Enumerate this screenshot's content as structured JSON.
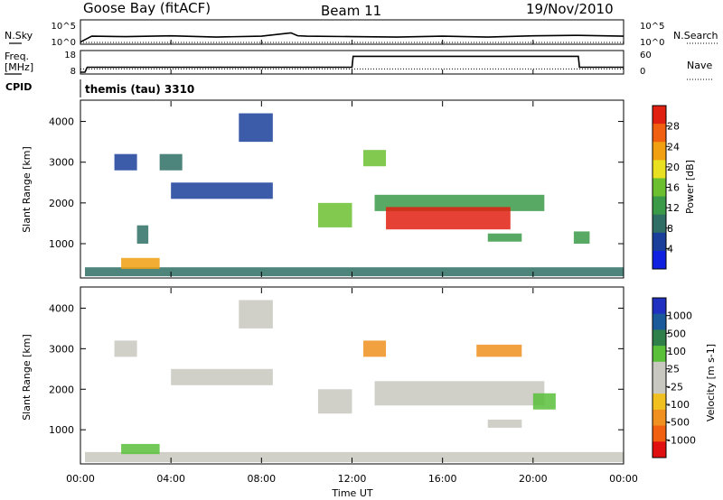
{
  "header": {
    "station": "Goose Bay (fitACF)",
    "beam": "Beam 11",
    "date": "19/Nov/2010"
  },
  "noise_panel": {
    "left_label": "N.Sky",
    "right_label": "N.Search",
    "ticks_left": [
      "10^5",
      "10^0"
    ],
    "ticks_right": [
      "10^5",
      "10^0"
    ]
  },
  "freq_panel": {
    "left_label_1": "Freq.",
    "left_label_2": "[MHz]",
    "right_label": "Nave",
    "ticks_left": [
      "18",
      "8"
    ],
    "ticks_right": [
      "60",
      "0"
    ]
  },
  "cpid": {
    "label": "CPID",
    "program": "themis (tau) 3310"
  },
  "colors": {
    "power_scale": [
      "#1020e0",
      "#1a3f9a",
      "#2e6e64",
      "#3b9a48",
      "#6cc030",
      "#e8e020",
      "#f0a010",
      "#f06010",
      "#e02010"
    ],
    "velocity_scale": [
      "#2030c0",
      "#1a5a9a",
      "#2f7f4a",
      "#5ac03a",
      "#c8c8c0",
      "#c8c8c0",
      "#f0c020",
      "#f09020",
      "#f06010",
      "#e01010"
    ]
  },
  "chart_data": [
    {
      "type": "line",
      "panel": "noise",
      "series": [
        {
          "name": "N.Sky",
          "style": "solid",
          "x": [
            0,
            0.5,
            2,
            4,
            6,
            8,
            9.3,
            9.6,
            10,
            12,
            14,
            16,
            18,
            20,
            22,
            24
          ],
          "y": [
            0.1,
            1.5,
            1.4,
            1.6,
            1.3,
            1.5,
            2.3,
            1.6,
            1.5,
            1.4,
            1.3,
            1.5,
            1.3,
            1.6,
            1.7,
            1.5
          ]
        },
        {
          "name": "N.Search",
          "style": "dotted",
          "x": [
            0,
            24
          ],
          "y": [
            0,
            0
          ]
        }
      ],
      "ylim": [
        0,
        5
      ],
      "xlim": [
        0,
        24
      ]
    },
    {
      "type": "line",
      "panel": "frequency",
      "series": [
        {
          "name": "Freq.",
          "style": "solid",
          "x": [
            0,
            0.2,
            0.3,
            12,
            12.05,
            22,
            22.05,
            24
          ],
          "y": [
            8,
            8,
            10.5,
            10.5,
            16,
            16,
            10.5,
            10.5
          ]
        },
        {
          "name": "Nave",
          "style": "dotted",
          "x": [
            0,
            24
          ],
          "y": [
            10,
            10
          ]
        }
      ],
      "ylim_left": [
        8,
        18
      ],
      "ylim_right": [
        0,
        60
      ],
      "xlim": [
        0,
        24
      ]
    },
    {
      "type": "heatmap",
      "panel": "power",
      "ylabel": "Slant Range [km]",
      "colorbar_label": "Power [dB]",
      "colorbar_ticks": [
        "28",
        "24",
        "20",
        "16",
        "12",
        "8",
        "4"
      ],
      "xlim": [
        0,
        24
      ],
      "ylim": [
        180,
        4500
      ],
      "yticks": [
        "4000",
        "3000",
        "2000",
        "1000"
      ],
      "regions": [
        {
          "x0": 0.2,
          "x1": 24,
          "y0": 200,
          "y1": 420,
          "level": 2
        },
        {
          "x0": 1.8,
          "x1": 3.5,
          "y0": 380,
          "y1": 650,
          "level": 6
        },
        {
          "x0": 2.5,
          "x1": 3.0,
          "y0": 1000,
          "y1": 1450,
          "level": 2
        },
        {
          "x0": 1.5,
          "x1": 2.5,
          "y0": 2800,
          "y1": 3200,
          "level": 1
        },
        {
          "x0": 4.0,
          "x1": 8.5,
          "y0": 2100,
          "y1": 2500,
          "level": 1
        },
        {
          "x0": 3.5,
          "x1": 4.5,
          "y0": 2800,
          "y1": 3200,
          "level": 2
        },
        {
          "x0": 7.0,
          "x1": 8.5,
          "y0": 3500,
          "y1": 4200,
          "level": 1
        },
        {
          "x0": 10.5,
          "x1": 12,
          "y0": 1400,
          "y1": 2000,
          "level": 4
        },
        {
          "x0": 12.5,
          "x1": 13.5,
          "y0": 2900,
          "y1": 3300,
          "level": 4
        },
        {
          "x0": 13,
          "x1": 20.5,
          "y0": 1800,
          "y1": 2200,
          "level": 3
        },
        {
          "x0": 13.5,
          "x1": 19,
          "y0": 1350,
          "y1": 1900,
          "level": 8
        },
        {
          "x0": 18,
          "x1": 19.5,
          "y0": 1050,
          "y1": 1250,
          "level": 3
        },
        {
          "x0": 21.8,
          "x1": 22.5,
          "y0": 1000,
          "y1": 1300,
          "level": 3
        }
      ]
    },
    {
      "type": "heatmap",
      "panel": "velocity",
      "ylabel": "Slant Range [km]",
      "colorbar_label": "Velocity [m s-1]",
      "colorbar_ticks": [
        "1000",
        "500",
        "100",
        "25",
        "-25",
        "-100",
        "-500",
        "-1000"
      ],
      "xlim": [
        0,
        24
      ],
      "ylim": [
        180,
        4500
      ],
      "yticks": [
        "4000",
        "3000",
        "2000",
        "1000"
      ],
      "xticks": [
        "00:00",
        "04:00",
        "08:00",
        "12:00",
        "16:00",
        "20:00",
        "00:00"
      ],
      "xlabel": "Time UT",
      "regions": [
        {
          "x0": 0.2,
          "x1": 24,
          "y0": 200,
          "y1": 450,
          "level": 5
        },
        {
          "x0": 1.8,
          "x1": 3.5,
          "y0": 400,
          "y1": 650,
          "level": 3
        },
        {
          "x0": 1.5,
          "x1": 2.5,
          "y0": 2800,
          "y1": 3200,
          "level": 5
        },
        {
          "x0": 4.0,
          "x1": 8.5,
          "y0": 2100,
          "y1": 2500,
          "level": 5
        },
        {
          "x0": 7.0,
          "x1": 8.5,
          "y0": 3500,
          "y1": 4200,
          "level": 5
        },
        {
          "x0": 10.5,
          "x1": 12,
          "y0": 1400,
          "y1": 2000,
          "level": 5
        },
        {
          "x0": 13,
          "x1": 20.5,
          "y0": 1600,
          "y1": 2200,
          "level": 5
        },
        {
          "x0": 12.5,
          "x1": 13.5,
          "y0": 2800,
          "y1": 3200,
          "level": 7
        },
        {
          "x0": 17.5,
          "x1": 19.5,
          "y0": 2800,
          "y1": 3100,
          "level": 7
        },
        {
          "x0": 20,
          "x1": 21,
          "y0": 1500,
          "y1": 1900,
          "level": 3
        },
        {
          "x0": 18,
          "x1": 19.5,
          "y0": 1050,
          "y1": 1250,
          "level": 5
        }
      ]
    }
  ]
}
